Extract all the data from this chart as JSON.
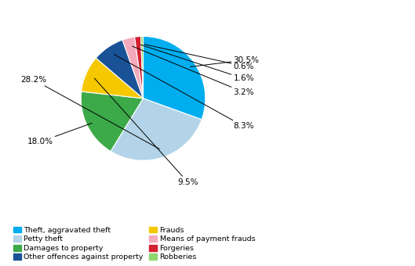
{
  "labels": [
    "Theft, aggravated theft",
    "Petty theft",
    "Damages to property",
    "Frauds",
    "Other offences against property",
    "Means of payment frauds",
    "Forgeries",
    "Robberies"
  ],
  "values": [
    30.5,
    28.2,
    18.0,
    9.5,
    8.3,
    3.2,
    1.6,
    0.6
  ],
  "colors": [
    "#00AEEF",
    "#B3D4E8",
    "#3DAA4A",
    "#F5C800",
    "#1A5297",
    "#F5AABB",
    "#D42030",
    "#90D870"
  ],
  "label_pcts": [
    "30.5%",
    "28.2%",
    "18.0%",
    "9.5%",
    "8.3%",
    "3.2%",
    "1.6%",
    "0.6%"
  ],
  "legend_row1": [
    "Theft, aggravated theft",
    "Petty theft"
  ],
  "legend_row2": [
    "Damages to property",
    "Other offences against property"
  ],
  "legend_row3": [
    "Frauds",
    "Means of payment frauds"
  ],
  "legend_row4": [
    "Forgeries",
    "Robberies"
  ],
  "legend_colors_row1": [
    "#00AEEF",
    "#B3D4E8"
  ],
  "legend_colors_row2": [
    "#3DAA4A",
    "#1A5297"
  ],
  "legend_colors_row3": [
    "#F5C800",
    "#F5AABB"
  ],
  "legend_colors_row4": [
    "#D42030",
    "#90D870"
  ],
  "startangle": 90,
  "background": "#ffffff"
}
